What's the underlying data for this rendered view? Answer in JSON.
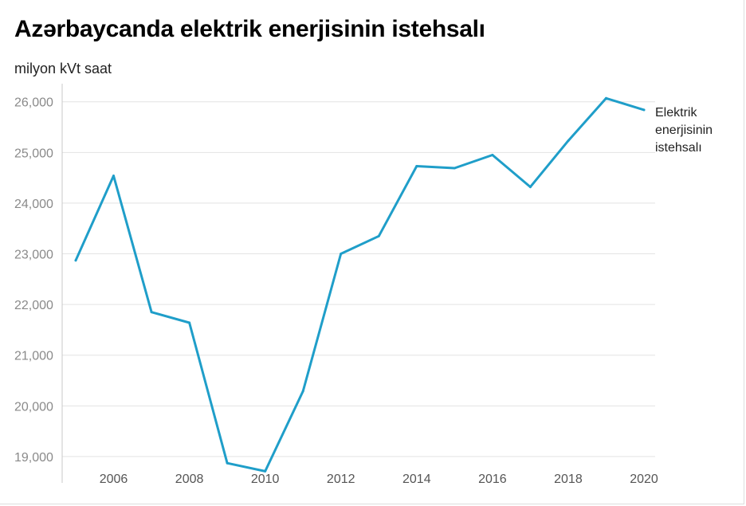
{
  "title": "Azərbaycanda elektrik enerjisinin istehsalı",
  "subtitle": "milyon kVt saat",
  "colors": {
    "line": "#1f9ec9",
    "grid": "#e3e3e3",
    "axis": "#c8c8c8"
  },
  "chart_data": {
    "type": "line",
    "title": "Azərbaycanda elektrik enerjisinin istehsalı",
    "ylabel": "milyon kVt saat",
    "xlabel": "",
    "x": [
      2005,
      2006,
      2007,
      2008,
      2009,
      2010,
      2011,
      2012,
      2013,
      2014,
      2015,
      2016,
      2017,
      2018,
      2019,
      2020
    ],
    "series": [
      {
        "name": "Elektrik enerjisinin istehsalı",
        "label_lines": [
          "Elektrik",
          "enerjisinin",
          "istehsalı"
        ],
        "values": [
          22870,
          24540,
          21850,
          21640,
          18870,
          18710,
          20290,
          23000,
          23350,
          24730,
          24690,
          24950,
          24320,
          25230,
          26070,
          25840
        ]
      }
    ],
    "x_ticks": [
      "2006",
      "2008",
      "2010",
      "2012",
      "2014",
      "2016",
      "2018",
      "2020"
    ],
    "y_ticks": [
      "19,000",
      "20,000",
      "21,000",
      "22,000",
      "23,000",
      "24,000",
      "25,000",
      "26,000"
    ],
    "ylim": [
      18700,
      26200
    ],
    "xlim": [
      2005,
      2020
    ],
    "grid": true,
    "legend": "end-of-line label"
  }
}
